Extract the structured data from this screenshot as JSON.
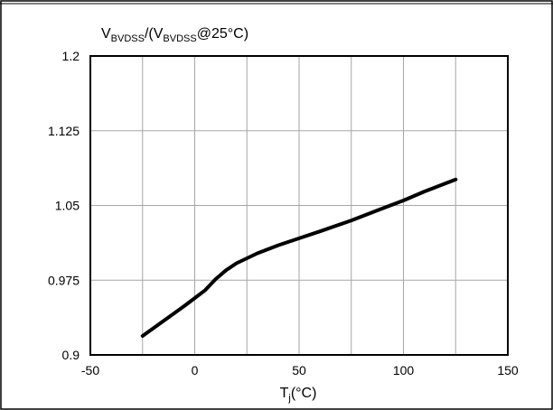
{
  "chart_data": {
    "type": "line",
    "ylabel_parts": {
      "v1": "V",
      "s1": "BVDSS",
      "mid": "/(V",
      "s2": "BVDSS",
      "tail": "@25°C)"
    },
    "xlabel_parts": {
      "t": "T",
      "s": "j",
      "tail": "(°C)"
    },
    "xlim": [
      -50,
      150
    ],
    "ylim": [
      0.9,
      1.2
    ],
    "xticks": [
      -50,
      0,
      50,
      100,
      150
    ],
    "xtick_labels": [
      "-50",
      "0",
      "50",
      "100",
      "150"
    ],
    "yticks": [
      0.9,
      0.975,
      1.05,
      1.125,
      1.2
    ],
    "ytick_labels": [
      "0.9",
      "0.975",
      "1.05",
      "1.125",
      "1.2"
    ],
    "grid": true,
    "line_color": "#000000",
    "series": [
      {
        "x": [
          -25,
          -15,
          -5,
          0,
          5,
          10,
          15,
          20,
          25,
          30,
          40,
          50,
          60,
          75,
          90,
          100,
          110,
          125
        ],
        "y": [
          0.919,
          0.934,
          0.949,
          0.957,
          0.965,
          0.976,
          0.985,
          0.992,
          0.997,
          1.002,
          1.01,
          1.017,
          1.024,
          1.035,
          1.047,
          1.055,
          1.064,
          1.076
        ]
      }
    ]
  }
}
